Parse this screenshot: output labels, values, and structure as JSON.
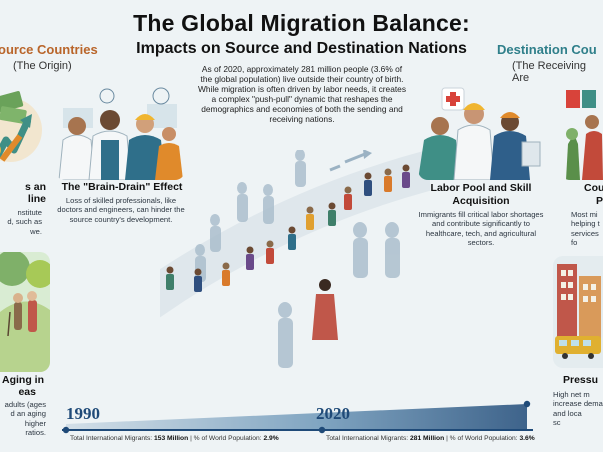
{
  "header": {
    "title": "The Global Migration Balance:",
    "subtitle": "Impacts on Source and Destination Nations"
  },
  "source": {
    "heading": "ource Countries",
    "subheading": "(The Origin)"
  },
  "destination": {
    "heading": "Destination Cou",
    "subheading": "(The Receiving Are"
  },
  "intro": "As of 2020, approximately 281 million people (3.6% of the global population) live outside their country of birth. While migration is often driven by labor needs, it creates a complex \"push-pull\" dynamic that reshapes the demographics and economies of both the sending and receiving nations.",
  "cards": {
    "brain_drain": {
      "title": "The \"Brain-Drain\" Effect",
      "text": "Loss of skilled professionals, like doctors and engineers, can hinder the source country's development."
    },
    "remittances": {
      "title_line1": "s an",
      "title_line2": "line",
      "text": "nstitute\nd, such as\nwe."
    },
    "aging": {
      "title_line1": "Aging in",
      "title_line2": "eas",
      "text": "adults (ages\nd an aging\nhigher\nratios."
    },
    "labor": {
      "title": "Labor Pool and Skill Acquisition",
      "text": "Immigrants fill critical labor shortages and contribute significantly to healthcare, tech, and agricultural sectors."
    },
    "cultural": {
      "title_line1": "Cou",
      "title_line2": "P",
      "text": "Most mi\nhelping t\nservices fo"
    },
    "pressure": {
      "title": "Pressu",
      "text": "High net m\nincrease dema\nand loca\nsc"
    }
  },
  "timeline": {
    "year_start": "1990",
    "year_end": "2020",
    "stat_start_prefix": "Total International Migrants: ",
    "stat_start_value": "153 Million",
    "stat_start_mid": " | % of World Population: ",
    "stat_start_pct": "2.9%",
    "stat_end_prefix": "Total International Migrants: ",
    "stat_end_value": "281 Million",
    "stat_end_mid": " | % of World Population: ",
    "stat_end_pct": "3.6%",
    "progress_start": 0.029,
    "progress_end": 0.036
  },
  "colors": {
    "accent_orange": "#b9652a",
    "accent_teal": "#2f7f8a",
    "timeline_blue": "#1f4a78",
    "background": "#eef3f5"
  }
}
